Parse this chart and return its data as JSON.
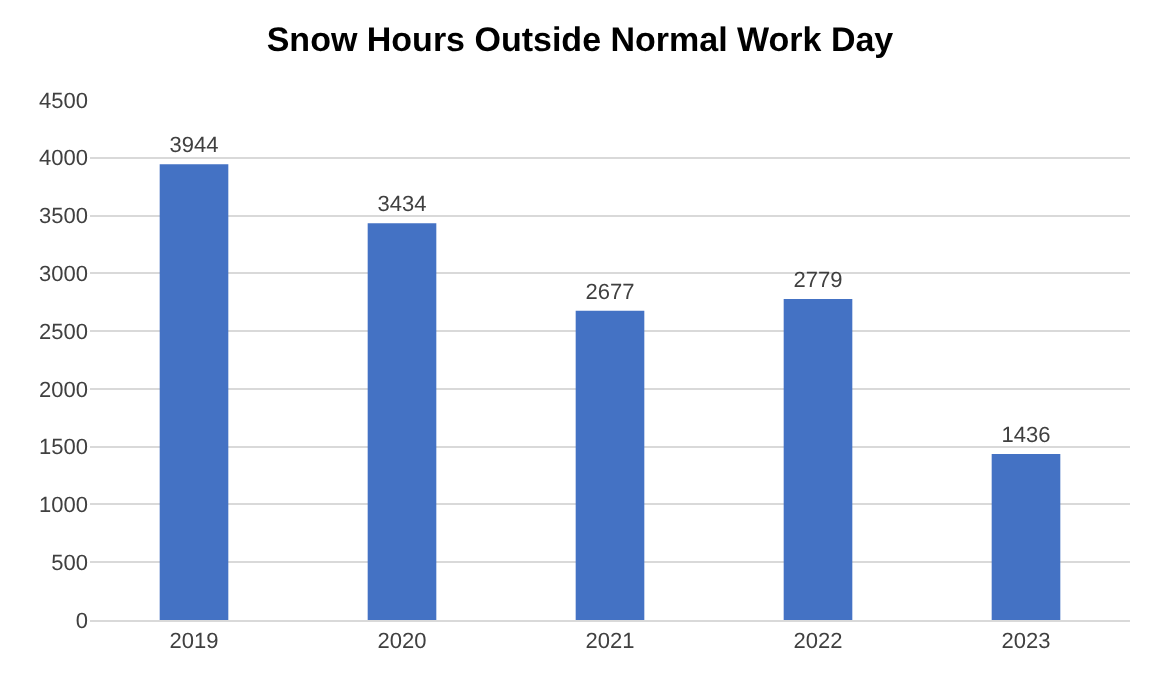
{
  "chart_data": {
    "type": "bar",
    "title": "Snow Hours Outside Normal Work Day",
    "categories": [
      "2019",
      "2020",
      "2021",
      "2022",
      "2023"
    ],
    "values": [
      3944,
      3434,
      2677,
      2779,
      1436
    ],
    "color": "#4472c4",
    "ylim": [
      0,
      4500
    ],
    "yticks": [
      0,
      500,
      1000,
      1500,
      2000,
      2500,
      3000,
      3500,
      4000,
      4500
    ],
    "grid": "y",
    "data_labels": true
  }
}
